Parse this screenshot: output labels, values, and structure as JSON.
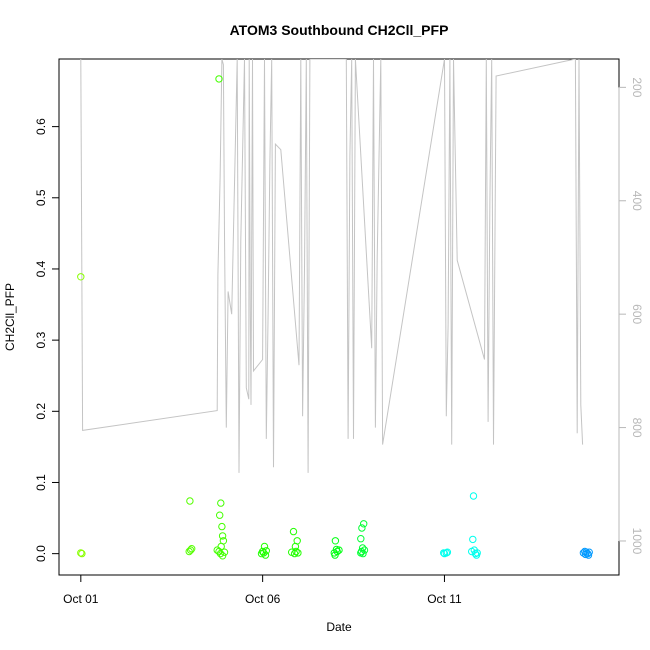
{
  "chart_data": {
    "type": "scatter",
    "title": "ATOM3 Southbound CH2Cll_PFP",
    "xlabel": "Date",
    "ylabel": "CH2Cll_PFP",
    "x_unit": "days",
    "xlim": [
      -0.6,
      14.8
    ],
    "ylim": [
      -0.03,
      0.695
    ],
    "x_ticks": [
      {
        "value": 0,
        "label": "Oct 01"
      },
      {
        "value": 5,
        "label": "Oct 06"
      },
      {
        "value": 10,
        "label": "Oct 11"
      }
    ],
    "y_ticks": [
      {
        "value": 0.0,
        "label": "0.0"
      },
      {
        "value": 0.1,
        "label": "0.1"
      },
      {
        "value": 0.2,
        "label": "0.2"
      },
      {
        "value": 0.3,
        "label": "0.3"
      },
      {
        "value": 0.4,
        "label": "0.4"
      },
      {
        "value": 0.5,
        "label": "0.5"
      },
      {
        "value": 0.6,
        "label": "0.6"
      }
    ],
    "secondary_axis": {
      "reversed": true,
      "range": [
        1060,
        150
      ],
      "ticks": [
        {
          "value": 200,
          "label": "200"
        },
        {
          "value": 400,
          "label": "400"
        },
        {
          "value": 600,
          "label": "600"
        },
        {
          "value": 800,
          "label": "800"
        },
        {
          "value": 1000,
          "label": "1000"
        }
      ],
      "color": "#b8b8b8"
    },
    "line_series": {
      "color": "#c4c4c4",
      "points": [
        [
          0.0,
          150
        ],
        [
          0.05,
          805
        ],
        [
          3.75,
          770
        ],
        [
          3.77,
          530
        ],
        [
          3.83,
          360
        ],
        [
          3.88,
          150
        ],
        [
          3.92,
          160
        ],
        [
          3.95,
          460
        ],
        [
          4.0,
          800
        ],
        [
          4.05,
          560
        ],
        [
          4.15,
          600
        ],
        [
          4.3,
          150
        ],
        [
          4.35,
          880
        ],
        [
          4.4,
          470
        ],
        [
          4.5,
          150
        ],
        [
          4.55,
          730
        ],
        [
          4.62,
          750
        ],
        [
          4.63,
          150
        ],
        [
          4.66,
          600
        ],
        [
          4.68,
          760
        ],
        [
          4.72,
          150
        ],
        [
          4.75,
          700
        ],
        [
          5.0,
          680
        ],
        [
          5.05,
          150
        ],
        [
          5.1,
          820
        ],
        [
          5.15,
          600
        ],
        [
          5.2,
          330
        ],
        [
          5.25,
          150
        ],
        [
          5.3,
          870
        ],
        [
          5.35,
          300
        ],
        [
          5.5,
          310
        ],
        [
          6.0,
          690
        ],
        [
          6.05,
          150
        ],
        [
          6.1,
          780
        ],
        [
          6.15,
          520
        ],
        [
          6.2,
          150
        ],
        [
          6.25,
          880
        ],
        [
          6.3,
          150
        ],
        [
          7.3,
          150
        ],
        [
          7.35,
          820
        ],
        [
          7.4,
          320
        ],
        [
          7.45,
          150
        ],
        [
          7.5,
          820
        ],
        [
          7.55,
          150
        ],
        [
          8.0,
          660
        ],
        [
          8.05,
          150
        ],
        [
          8.1,
          800
        ],
        [
          8.15,
          500
        ],
        [
          8.25,
          150
        ],
        [
          8.3,
          830
        ],
        [
          10.0,
          150
        ],
        [
          10.05,
          780
        ],
        [
          10.1,
          620
        ],
        [
          10.15,
          150
        ],
        [
          10.2,
          830
        ],
        [
          10.25,
          150
        ],
        [
          10.35,
          505
        ],
        [
          11.1,
          680
        ],
        [
          11.15,
          150
        ],
        [
          11.2,
          790
        ],
        [
          11.25,
          400
        ],
        [
          11.3,
          150
        ],
        [
          11.35,
          830
        ],
        [
          11.42,
          180
        ],
        [
          13.6,
          150
        ],
        [
          13.65,
          810
        ],
        [
          13.7,
          150
        ],
        [
          13.75,
          760
        ],
        [
          13.8,
          830
        ]
      ]
    },
    "points": [
      {
        "x": 0.0,
        "y": 0.389,
        "color": "#88ff00"
      },
      {
        "x": 0.0,
        "y": 0.001,
        "color": "#88ff00"
      },
      {
        "x": 0.03,
        "y": 0.0,
        "color": "#88ff00"
      },
      {
        "x": 3.0,
        "y": 0.074,
        "color": "#55ff00"
      },
      {
        "x": 2.98,
        "y": 0.003,
        "color": "#55ff00"
      },
      {
        "x": 3.02,
        "y": 0.005,
        "color": "#55ff00"
      },
      {
        "x": 3.05,
        "y": 0.007,
        "color": "#55ff00"
      },
      {
        "x": 3.8,
        "y": 0.667,
        "color": "#44ff00"
      },
      {
        "x": 3.75,
        "y": 0.005,
        "color": "#44ff00"
      },
      {
        "x": 3.82,
        "y": 0.054,
        "color": "#44ff00"
      },
      {
        "x": 3.85,
        "y": 0.071,
        "color": "#44ff00"
      },
      {
        "x": 3.88,
        "y": 0.038,
        "color": "#44ff00"
      },
      {
        "x": 3.9,
        "y": 0.025,
        "color": "#44ff00"
      },
      {
        "x": 3.92,
        "y": 0.018,
        "color": "#44ff00"
      },
      {
        "x": 3.86,
        "y": 0.01,
        "color": "#44ff00"
      },
      {
        "x": 3.84,
        "y": 0.0,
        "color": "#44ff00"
      },
      {
        "x": 3.9,
        "y": -0.003,
        "color": "#44ff00"
      },
      {
        "x": 3.95,
        "y": 0.002,
        "color": "#44ff00"
      },
      {
        "x": 3.8,
        "y": 0.003,
        "color": "#44ff00"
      },
      {
        "x": 4.97,
        "y": 0.0,
        "color": "#22ff00"
      },
      {
        "x": 5.0,
        "y": 0.003,
        "color": "#22ff00"
      },
      {
        "x": 5.05,
        "y": 0.01,
        "color": "#22ff00"
      },
      {
        "x": 5.08,
        "y": -0.002,
        "color": "#22ff00"
      },
      {
        "x": 5.1,
        "y": 0.004,
        "color": "#22ff00"
      },
      {
        "x": 5.03,
        "y": 0.001,
        "color": "#22ff00"
      },
      {
        "x": 5.8,
        "y": 0.002,
        "color": "#22ff00"
      },
      {
        "x": 5.85,
        "y": 0.031,
        "color": "#22ff00"
      },
      {
        "x": 5.9,
        "y": 0.01,
        "color": "#22ff00"
      },
      {
        "x": 5.95,
        "y": 0.018,
        "color": "#22ff00"
      },
      {
        "x": 5.92,
        "y": 0.003,
        "color": "#22ff00"
      },
      {
        "x": 5.88,
        "y": 0.0,
        "color": "#22ff00"
      },
      {
        "x": 5.97,
        "y": 0.001,
        "color": "#22ff00"
      },
      {
        "x": 6.97,
        "y": 0.001,
        "color": "#00ff11"
      },
      {
        "x": 7.0,
        "y": 0.018,
        "color": "#00ff11"
      },
      {
        "x": 7.03,
        "y": 0.006,
        "color": "#00ff11"
      },
      {
        "x": 7.05,
        "y": 0.003,
        "color": "#00ff11"
      },
      {
        "x": 7.1,
        "y": 0.005,
        "color": "#00ff11"
      },
      {
        "x": 6.99,
        "y": -0.002,
        "color": "#00ff11"
      },
      {
        "x": 7.7,
        "y": 0.021,
        "color": "#00ff33"
      },
      {
        "x": 7.73,
        "y": 0.036,
        "color": "#00ff33"
      },
      {
        "x": 7.78,
        "y": 0.042,
        "color": "#00ff33"
      },
      {
        "x": 7.75,
        "y": 0.008,
        "color": "#00ff33"
      },
      {
        "x": 7.72,
        "y": 0.003,
        "color": "#00ff33"
      },
      {
        "x": 7.76,
        "y": 0.0,
        "color": "#00ff33"
      },
      {
        "x": 7.8,
        "y": 0.005,
        "color": "#00ff33"
      },
      {
        "x": 7.7,
        "y": 0.001,
        "color": "#00ff33"
      },
      {
        "x": 9.98,
        "y": 0.001,
        "color": "#00ffee"
      },
      {
        "x": 10.0,
        "y": 0.0,
        "color": "#00ffee"
      },
      {
        "x": 10.05,
        "y": 0.001,
        "color": "#00ffee"
      },
      {
        "x": 10.08,
        "y": 0.002,
        "color": "#00ffee"
      },
      {
        "x": 10.8,
        "y": 0.081,
        "color": "#00ffee"
      },
      {
        "x": 10.78,
        "y": 0.02,
        "color": "#00ffee"
      },
      {
        "x": 10.75,
        "y": 0.003,
        "color": "#00ffee"
      },
      {
        "x": 10.82,
        "y": 0.005,
        "color": "#00ffee"
      },
      {
        "x": 10.85,
        "y": 0.0,
        "color": "#00ffee"
      },
      {
        "x": 10.88,
        "y": -0.002,
        "color": "#00ffee"
      },
      {
        "x": 10.9,
        "y": 0.001,
        "color": "#00ffee"
      },
      {
        "x": 13.82,
        "y": 0.001,
        "color": "#0099ff"
      },
      {
        "x": 13.86,
        "y": 0.003,
        "color": "#0099ff"
      },
      {
        "x": 13.9,
        "y": 0.002,
        "color": "#0099ff"
      },
      {
        "x": 13.94,
        "y": 0.0,
        "color": "#0099ff"
      },
      {
        "x": 13.98,
        "y": 0.002,
        "color": "#0099ff"
      },
      {
        "x": 13.88,
        "y": -0.001,
        "color": "#0099ff"
      },
      {
        "x": 13.96,
        "y": -0.002,
        "color": "#0099ff"
      }
    ],
    "grid": false,
    "legend": "none"
  }
}
